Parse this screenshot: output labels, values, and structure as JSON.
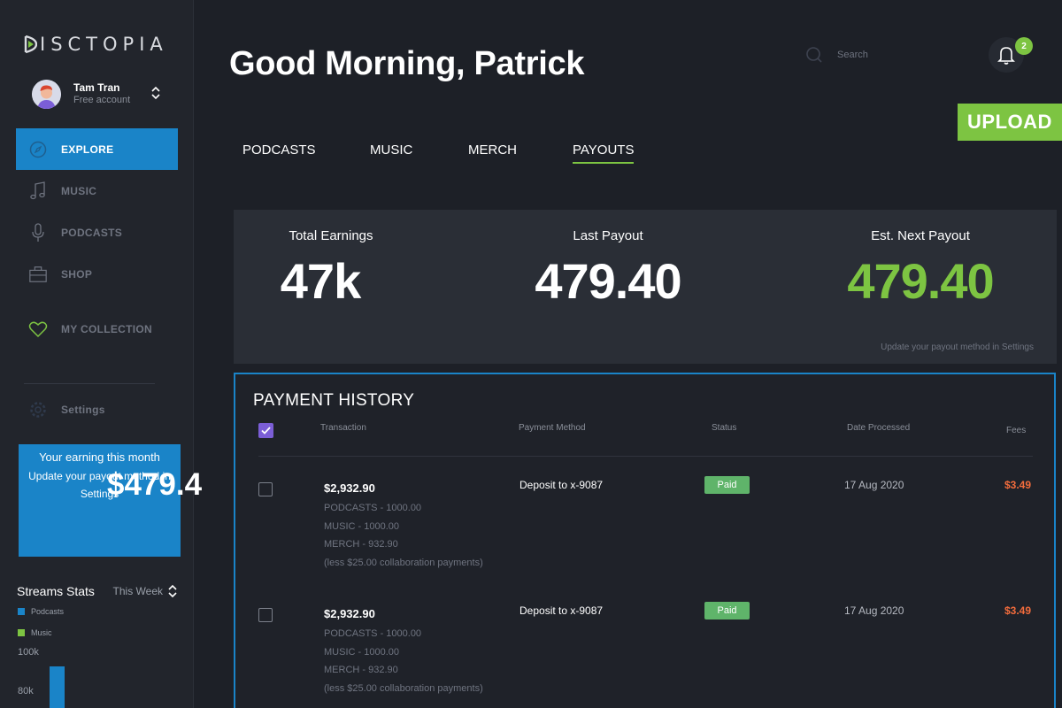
{
  "app": {
    "logo_text": "ISCTOPIA",
    "logo_initial": "D"
  },
  "user": {
    "name": "Tam Tran",
    "plan": "Free account"
  },
  "nav": [
    {
      "label": "EXPLORE",
      "icon": "compass-icon",
      "active": true
    },
    {
      "label": "MUSIC",
      "icon": "music-note-icon"
    },
    {
      "label": "PODCASTS",
      "icon": "microphone-icon"
    },
    {
      "label": "SHOP",
      "icon": "shopping-bag-icon"
    },
    {
      "label": "MY COLLECTION",
      "icon": "heart-icon"
    },
    {
      "label": "Settings",
      "icon": "gear-icon"
    }
  ],
  "earning_card": {
    "title": "Your earning this month",
    "amount": "$479.4",
    "subtitle": "Update your payout method in Settings"
  },
  "stats": {
    "title": "Streams Stats",
    "range": "This Week",
    "legend": [
      {
        "label": "Podcasts",
        "color": "#1a84c8"
      },
      {
        "label": "Music",
        "color": "#7dc442"
      }
    ],
    "y_ticks": [
      "100k",
      "80k"
    ]
  },
  "header": {
    "greeting": "Good Morning, Patrick",
    "search_placeholder": "Search",
    "notification_count": "2",
    "upload_label": "UPLOAD"
  },
  "tabs": [
    {
      "label": "PODCASTS"
    },
    {
      "label": "MUSIC"
    },
    {
      "label": "MERCH"
    },
    {
      "label": "PAYOUTS",
      "active": true
    }
  ],
  "summary": {
    "total_earnings": {
      "label": "Total Earnings",
      "value": "47k"
    },
    "last_payout": {
      "label": "Last Payout",
      "value": "479.40"
    },
    "next_payout": {
      "label": "Est. Next Payout",
      "value": "479.40"
    },
    "hint": "Update your payout method in Settings"
  },
  "history": {
    "title": "PAYMENT HISTORY",
    "columns": {
      "transaction": "Transaction",
      "method": "Payment Method",
      "status": "Status",
      "date": "Date Processed",
      "fees": "Fees"
    },
    "rows": [
      {
        "amount": "$2,932.90",
        "lines": [
          "PODCASTS - 1000.00",
          "MUSIC - 1000.00",
          "MERCH - 932.90",
          "(less $25.00 collaboration payments)"
        ],
        "method": "Deposit to x-9087",
        "status": "Paid",
        "date": "17 Aug 2020",
        "fee": "$3.49"
      },
      {
        "amount": "$2,932.90",
        "lines": [
          "PODCASTS - 1000.00",
          "MUSIC - 1000.00",
          "MERCH - 932.90",
          "(less $25.00 collaboration payments)"
        ],
        "method": "Deposit to x-9087",
        "status": "Paid",
        "date": "17 Aug 2020",
        "fee": "$3.49"
      }
    ]
  },
  "colors": {
    "accent_blue": "#1a84c8",
    "accent_green": "#7dc442",
    "fee_red": "#f26c3c",
    "check_purple": "#7b5ed6"
  }
}
